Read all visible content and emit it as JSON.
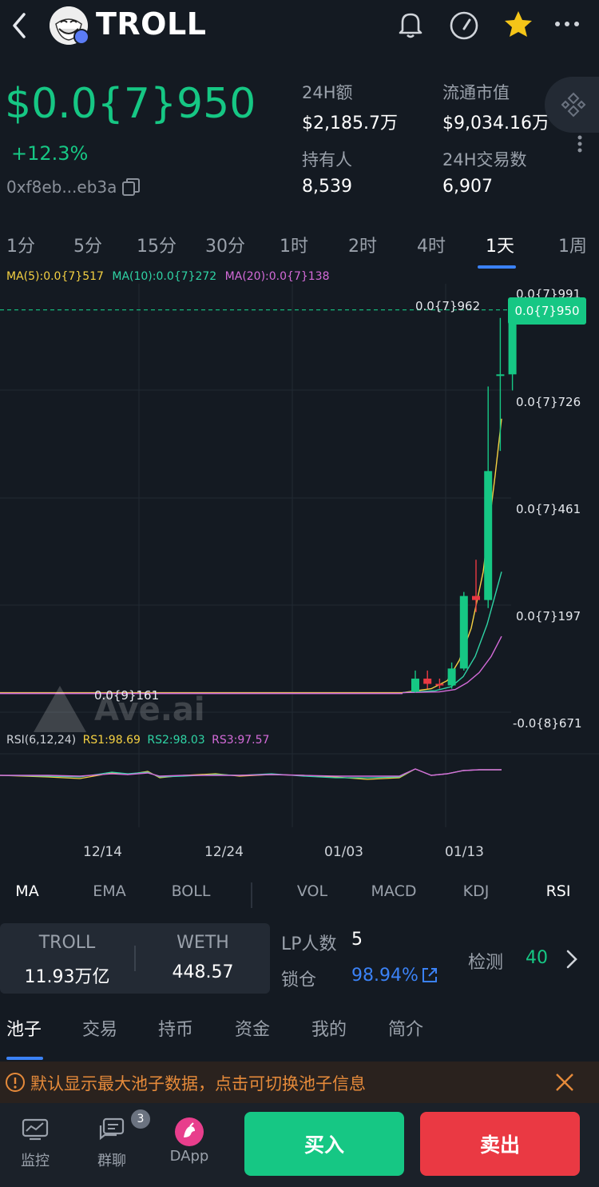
{
  "header": {
    "back_icon": "chevron-left-icon",
    "token_name": "TROLL",
    "icons": [
      "bell-icon",
      "gauge-icon",
      "star-icon",
      "more-icon"
    ]
  },
  "price": {
    "value": "$0.0{7}950",
    "change": "+12.3%",
    "address": "0xf8eb...eb3a"
  },
  "stats": [
    {
      "label": "24H额",
      "value": "$2,185.7万"
    },
    {
      "label": "流通市值",
      "value": "$9,034.16万"
    },
    {
      "label": "持有人",
      "value": "8,539"
    },
    {
      "label": "24H交易数",
      "value": "6,907"
    }
  ],
  "timeframes": [
    "1分",
    "5分",
    "15分",
    "30分",
    "1时",
    "2时",
    "4时",
    "1天",
    "1周"
  ],
  "active_timeframe": "1天",
  "ma_legend": {
    "ma5": "MA(5):0.0{7}517",
    "ma10": "MA(10):0.0{7}272",
    "ma20": "MA(20):0.0{7}138"
  },
  "chart_data": {
    "type": "candlestick",
    "y_axis_labels": [
      "0.0{7}991",
      "0.0{7}726",
      "0.0{7}461",
      "0.0{7}197",
      "-0.0{8}671"
    ],
    "current_price_label": "0.0{7}950",
    "high_marker": "0.0{7}962",
    "low_marker": "0.0{9}161",
    "x_axis_labels": [
      "12/14",
      "12/24",
      "01/03",
      "01/13"
    ],
    "watermark": "Ave.ai",
    "colors": {
      "up": "#16c784",
      "down": "#ea3943",
      "ma5": "#f5d142",
      "ma10": "#2fd4a5",
      "ma20": "#d46bd9"
    },
    "candles": [
      {
        "o": 0.02,
        "c": 0.35,
        "h": 0.55,
        "l": 0.0
      },
      {
        "o": 0.35,
        "c": 0.22,
        "h": 0.55,
        "l": 0.1
      },
      {
        "o": 0.22,
        "c": 0.18,
        "h": 0.35,
        "l": 0.1
      },
      {
        "o": 0.18,
        "c": 0.6,
        "h": 0.75,
        "l": 0.1
      },
      {
        "o": 0.6,
        "c": 2.4,
        "h": 2.5,
        "l": 0.55
      },
      {
        "o": 2.4,
        "c": 2.3,
        "h": 3.3,
        "l": 2.0
      },
      {
        "o": 2.3,
        "c": 5.5,
        "h": 7.6,
        "l": 2.1
      },
      {
        "o": 7.9,
        "c": 7.9,
        "h": 9.3,
        "l": 6.0
      },
      {
        "o": 7.9,
        "c": 9.5,
        "h": 9.62,
        "l": 7.5
      }
    ]
  },
  "rsi_legend": {
    "title": "RSI(6,12,24)",
    "rs1": "RS1:98.69",
    "rs2": "RS2:98.03",
    "rs3": "RS3:97.57"
  },
  "indicators": [
    "MA",
    "EMA",
    "BOLL",
    "VOL",
    "MACD",
    "KDJ",
    "RSI"
  ],
  "pool": {
    "token_a": "TROLL",
    "amount_a": "11.93万亿",
    "token_b": "WETH",
    "amount_b": "448.57",
    "lp_label": "LP人数",
    "lp_value": "5",
    "lock_label": "锁仓",
    "lock_value": "98.94%",
    "check_label": "检测",
    "check_value": "40"
  },
  "tabs": [
    "池子",
    "交易",
    "持币",
    "资金",
    "我的",
    "简介"
  ],
  "active_tab": "池子",
  "notice": "默认显示最大池子数据，点击可切换池子信息",
  "bottom_nav": [
    {
      "label": "监控",
      "icon": "monitor-icon"
    },
    {
      "label": "群聊",
      "icon": "chat-icon",
      "badge": "3"
    },
    {
      "label": "DApp",
      "icon": "dapp-icon"
    }
  ],
  "buy_label": "买入",
  "sell_label": "卖出"
}
